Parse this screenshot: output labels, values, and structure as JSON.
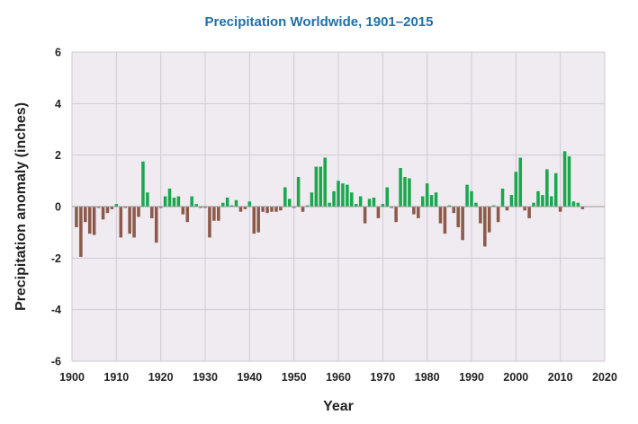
{
  "chart_data": {
    "type": "bar",
    "title": "Precipitation Worldwide, 1901–2015",
    "xlabel": "Year",
    "ylabel": "Precipitation anomaly (inches)",
    "xlim": [
      1900,
      2020
    ],
    "ylim": [
      -6,
      6
    ],
    "x_ticks": [
      "1900",
      "1910",
      "1920",
      "1930",
      "1940",
      "1950",
      "1960",
      "1970",
      "1980",
      "1990",
      "2000",
      "2010",
      "2020"
    ],
    "y_ticks": [
      "6",
      "4",
      "2",
      "0",
      "-2",
      "-4",
      "-6"
    ],
    "grid": true,
    "colors": {
      "positive": "#1aa84f",
      "negative": "#8d5a4a",
      "plot_bg": "#f0ebf1",
      "grid": "#cfcad3",
      "title": "#2170a6"
    },
    "x": [
      1901,
      1902,
      1903,
      1904,
      1905,
      1906,
      1907,
      1908,
      1909,
      1910,
      1911,
      1912,
      1913,
      1914,
      1915,
      1916,
      1917,
      1918,
      1919,
      1920,
      1921,
      1922,
      1923,
      1924,
      1925,
      1926,
      1927,
      1928,
      1929,
      1930,
      1931,
      1932,
      1933,
      1934,
      1935,
      1936,
      1937,
      1938,
      1939,
      1940,
      1941,
      1942,
      1943,
      1944,
      1945,
      1946,
      1947,
      1948,
      1949,
      1950,
      1951,
      1952,
      1953,
      1954,
      1955,
      1956,
      1957,
      1958,
      1959,
      1960,
      1961,
      1962,
      1963,
      1964,
      1965,
      1966,
      1967,
      1968,
      1969,
      1970,
      1971,
      1972,
      1973,
      1974,
      1975,
      1976,
      1977,
      1978,
      1979,
      1980,
      1981,
      1982,
      1983,
      1984,
      1985,
      1986,
      1987,
      1988,
      1989,
      1990,
      1991,
      1992,
      1993,
      1994,
      1995,
      1996,
      1997,
      1998,
      1999,
      2000,
      2001,
      2002,
      2003,
      2004,
      2005,
      2006,
      2007,
      2008,
      2009,
      2010,
      2011,
      2012,
      2013,
      2014,
      2015
    ],
    "values": [
      -0.8,
      -1.95,
      -0.6,
      -1.05,
      -1.1,
      -0.05,
      -0.5,
      -0.25,
      -0.1,
      0.1,
      -1.2,
      -0.05,
      -1.05,
      -1.2,
      -0.4,
      1.75,
      0.55,
      -0.45,
      -1.4,
      -0.05,
      0.4,
      0.7,
      0.35,
      0.4,
      -0.3,
      -0.6,
      0.4,
      0.1,
      -0.05,
      -0.05,
      -1.2,
      -0.55,
      -0.55,
      0.15,
      0.35,
      0.05,
      0.25,
      -0.2,
      -0.1,
      0.2,
      -1.05,
      -1.0,
      -0.2,
      -0.25,
      -0.2,
      -0.2,
      -0.15,
      0.75,
      0.3,
      -0.05,
      1.15,
      -0.2,
      0.05,
      0.55,
      1.55,
      1.55,
      1.9,
      0.15,
      0.6,
      1.0,
      0.9,
      0.85,
      0.55,
      0.1,
      0.4,
      -0.65,
      0.3,
      0.35,
      -0.45,
      0.1,
      0.75,
      -0.05,
      -0.6,
      1.5,
      1.15,
      1.1,
      -0.3,
      -0.45,
      0.4,
      0.9,
      0.45,
      0.55,
      -0.65,
      -1.05,
      0.05,
      -0.25,
      -0.8,
      -1.3,
      0.85,
      0.6,
      0.15,
      -0.65,
      -1.55,
      -1.0,
      0.05,
      -0.6,
      0.7,
      -0.15,
      0.45,
      1.35,
      1.9,
      -0.15,
      -0.45,
      0.15,
      0.6,
      0.45,
      1.45,
      0.4,
      1.3,
      -0.2,
      2.15,
      1.95,
      0.2,
      0.15,
      -0.1
    ]
  }
}
